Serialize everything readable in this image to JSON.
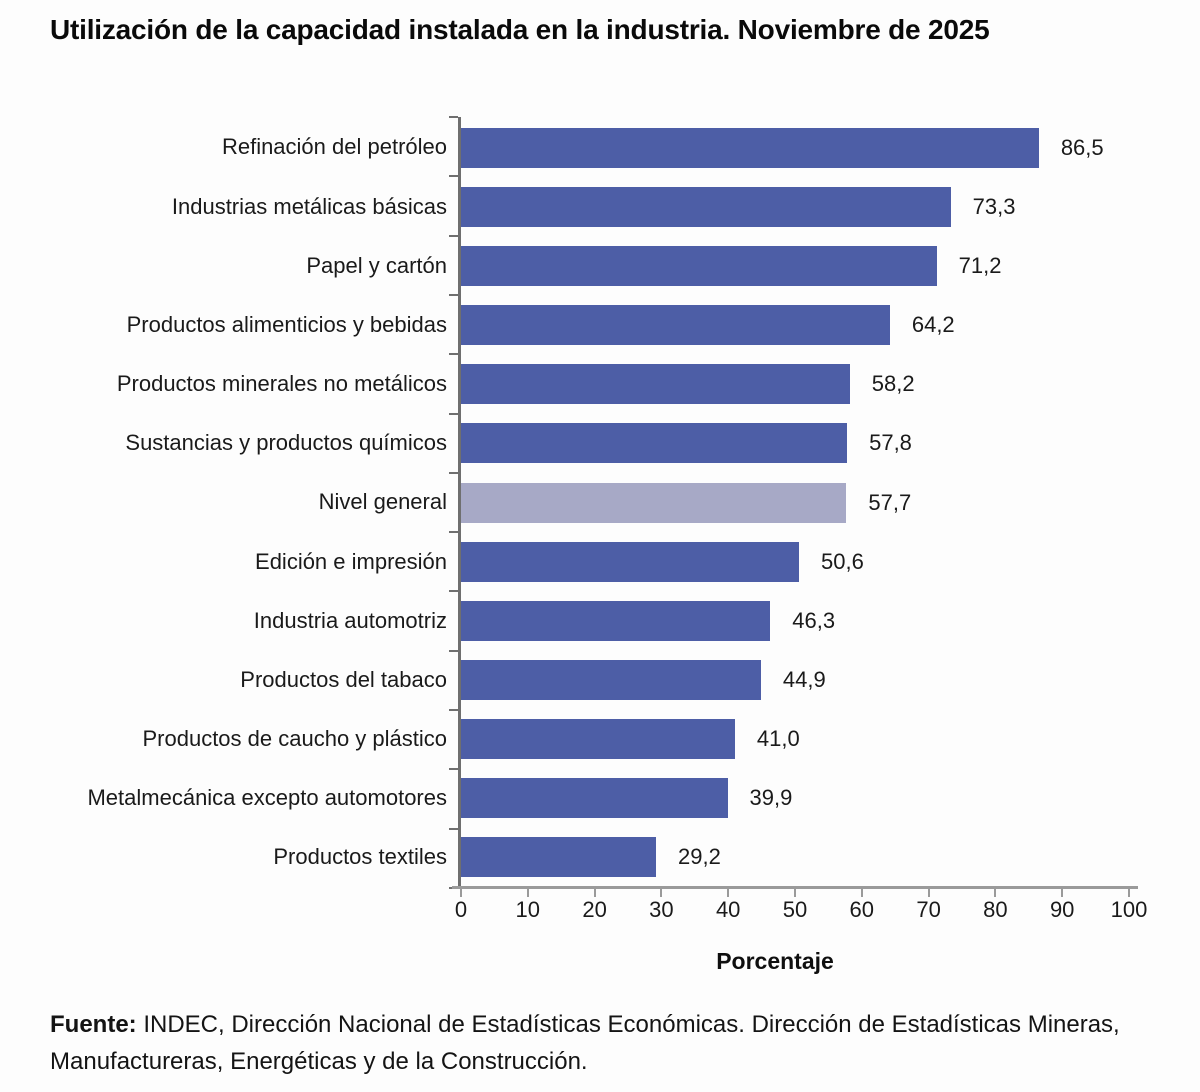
{
  "chart_data": {
    "type": "bar",
    "orientation": "horizontal",
    "title": "Utilización de la capacidad instalada en la industria. Noviembre de 2025",
    "xlabel": "Porcentaje",
    "xlim": [
      0,
      100
    ],
    "xticks": [
      0,
      10,
      20,
      30,
      40,
      50,
      60,
      70,
      80,
      90,
      100
    ],
    "grid": false,
    "legend": false,
    "categories": [
      "Refinación del petróleo",
      "Industrias metálicas básicas",
      "Papel y cartón",
      "Productos alimenticios y bebidas",
      "Productos minerales no metálicos",
      "Sustancias y productos químicos",
      "Nivel general",
      "Edición e impresión",
      "Industria automotriz",
      "Productos del tabaco",
      "Productos de caucho y plástico",
      "Metalmecánica excepto automotores",
      "Productos textiles"
    ],
    "values": [
      86.5,
      73.3,
      71.2,
      64.2,
      58.2,
      57.8,
      57.7,
      50.6,
      46.3,
      44.9,
      41.0,
      39.9,
      29.2
    ],
    "value_labels": [
      "86,5",
      "73,3",
      "71,2",
      "64,2",
      "58,2",
      "57,8",
      "57,7",
      "50,6",
      "46,3",
      "44,9",
      "41,0",
      "39,9",
      "29,2"
    ],
    "highlight_index": 6,
    "highlight_category": "Nivel general",
    "colors": {
      "bar": "#4d5ea6",
      "highlight_bar": "#a7a9c6",
      "axis_y": "#6f6f6f",
      "axis_x": "#9a9a9a",
      "text": "#1a1a1a"
    }
  },
  "footer": {
    "bold": "Fuente:",
    "text": "INDEC, Dirección Nacional de Estadísticas Económicas. Dirección de Estadísticas Mineras, Manufactureras, Energéticas y de la Construcción."
  }
}
